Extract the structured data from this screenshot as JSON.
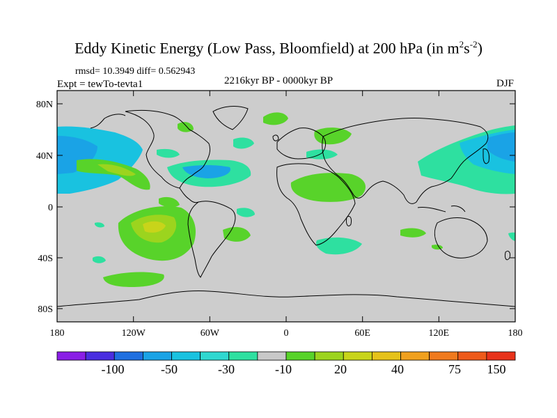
{
  "title": {
    "main": "Eddy Kinetic Energy (Low Pass, Bloomfield) at 200 hPa (in m",
    "sup1": "2",
    "mid": "s",
    "sup2": "-2",
    "end": ")"
  },
  "stats": "rmsd= 10.3949 diff= 0.562943",
  "experiment": "Expt = tewTo-tevta1",
  "period": "2216kyr BP - 0000kyr BP",
  "season": "DJF",
  "axes": {
    "lat_labels": [
      "80N",
      "40N",
      "0",
      "40S",
      "80S"
    ],
    "lon_labels": [
      "180",
      "120W",
      "60W",
      "0",
      "60E",
      "120E",
      "180"
    ]
  },
  "colorbar": {
    "labels": [
      "-100",
      "-50",
      "-30",
      "-10",
      "20",
      "40",
      "75",
      "150"
    ],
    "colors": [
      "#8a1ee6",
      "#4a2ee0",
      "#1f6fe0",
      "#1aa3e6",
      "#19c2e0",
      "#2fd8d0",
      "#2ee0a0",
      "#c8c8c8",
      "#58d32a",
      "#9cd41e",
      "#c8d41a",
      "#e6c21a",
      "#f0a01e",
      "#f07a1e",
      "#ee5a1a",
      "#e8321a"
    ]
  },
  "colors": {
    "land_background": "#cdcdcd",
    "coast": "#000000"
  }
}
